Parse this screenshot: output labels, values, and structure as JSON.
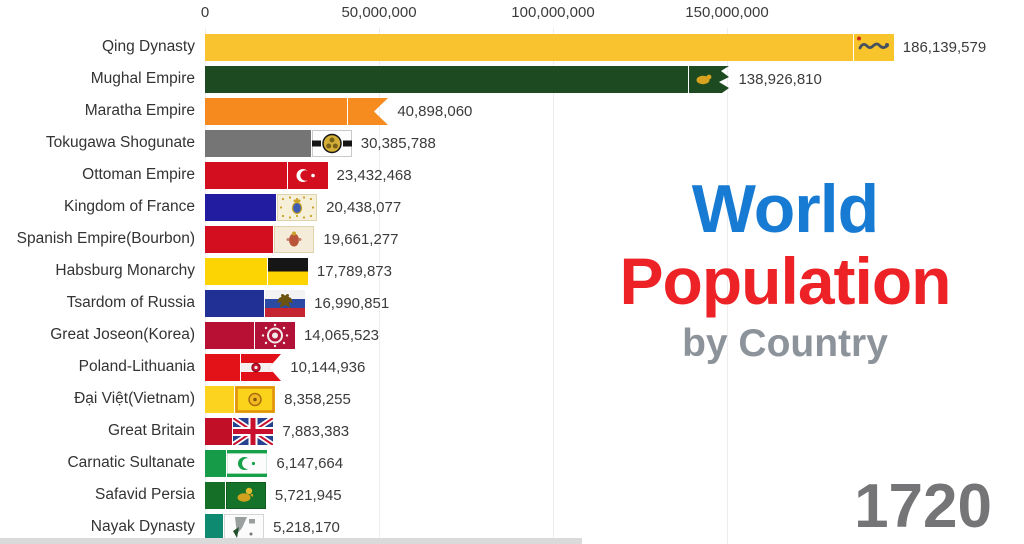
{
  "title": {
    "line1": "World",
    "line2": "Population",
    "line3": "by Country",
    "line1_color": "#177bd3",
    "line2_color": "#ed2227",
    "line3_color": "#8d939a"
  },
  "year": "1720",
  "chart_data": {
    "type": "bar",
    "orientation": "horizontal",
    "title": "World Population by Country",
    "subtitle_year": "1720",
    "xlabel": "",
    "ylabel": "",
    "grid": true,
    "axis": {
      "ticks": [
        "0",
        "50,000,000",
        "100,000,000",
        "150,000,000"
      ],
      "tick_values": [
        0,
        50000000,
        100000000,
        150000000
      ],
      "xlim": [
        0,
        186139579
      ]
    },
    "bars": [
      {
        "label": "Qing Dynasty",
        "value": 186139579,
        "value_label": "186,139,579",
        "color": "#f9c32f",
        "flag_icon": "qing-dynasty-flag"
      },
      {
        "label": "Mughal Empire",
        "value": 138926810,
        "value_label": "138,926,810",
        "color": "#1e4a21",
        "flag_icon": "mughal-empire-flag"
      },
      {
        "label": "Maratha Empire",
        "value": 40898060,
        "value_label": "40,898,060",
        "color": "#f68a1e",
        "flag_icon": "maratha-empire-flag"
      },
      {
        "label": "Tokugawa Shogunate",
        "value": 30385788,
        "value_label": "30,385,788",
        "color": "#757575",
        "flag_icon": "tokugawa-shogunate-flag"
      },
      {
        "label": "Ottoman Empire",
        "value": 23432468,
        "value_label": "23,432,468",
        "color": "#d30f1f",
        "flag_icon": "ottoman-empire-flag"
      },
      {
        "label": "Kingdom of France",
        "value": 20438077,
        "value_label": "20,438,077",
        "color": "#221ca0",
        "flag_icon": "kingdom-of-france-flag"
      },
      {
        "label": "Spanish Empire(Bourbon)",
        "value": 19661277,
        "value_label": "19,661,277",
        "color": "#d30f1f",
        "flag_icon": "spanish-empire-flag"
      },
      {
        "label": "Habsburg Monarchy",
        "value": 17789873,
        "value_label": "17,789,873",
        "color": "#fdd403",
        "flag_icon": "habsburg-monarchy-flag"
      },
      {
        "label": "Tsardom of Russia",
        "value": 16990851,
        "value_label": "16,990,851",
        "color": "#203095",
        "flag_icon": "tsardom-of-russia-flag"
      },
      {
        "label": "Great Joseon(Korea)",
        "value": 14065523,
        "value_label": "14,065,523",
        "color": "#b80f35",
        "flag_icon": "great-joseon-flag"
      },
      {
        "label": "Poland-Lithuania",
        "value": 10144936,
        "value_label": "10,144,936",
        "color": "#e31118",
        "flag_icon": "poland-lithuania-flag"
      },
      {
        "label": "Đại Việt(Vietnam)",
        "value": 8358255,
        "value_label": "8,358,255",
        "color": "#fcd31e",
        "flag_icon": "dai-viet-flag"
      },
      {
        "label": "Great Britain",
        "value": 7883383,
        "value_label": "7,883,383",
        "color": "#c00f26",
        "flag_icon": "great-britain-flag"
      },
      {
        "label": "Carnatic Sultanate",
        "value": 6147664,
        "value_label": "6,147,664",
        "color": "#169c49",
        "flag_icon": "carnatic-sultanate-flag"
      },
      {
        "label": "Safavid Persia",
        "value": 5721945,
        "value_label": "5,721,945",
        "color": "#156f26",
        "flag_icon": "safavid-persia-flag"
      },
      {
        "label": "Nayak Dynasty",
        "value": 5218170,
        "value_label": "5,218,170",
        "color": "#0e8a70",
        "flag_icon": "nayak-dynasty-flag"
      }
    ]
  }
}
